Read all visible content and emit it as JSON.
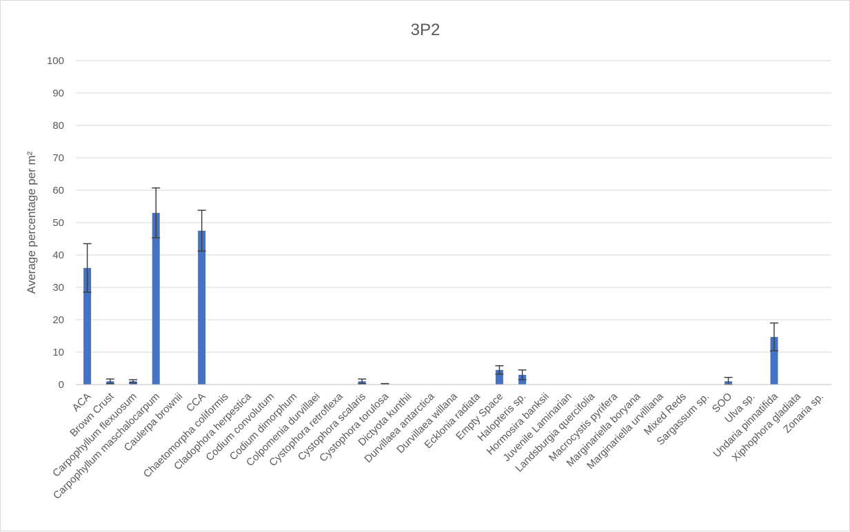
{
  "chart_data": {
    "type": "bar",
    "title": "3P2",
    "xlabel": "",
    "ylabel": "Average percentage per m²",
    "ylim": [
      0,
      100
    ],
    "yticks": [
      0,
      10,
      20,
      30,
      40,
      50,
      60,
      70,
      80,
      90,
      100
    ],
    "grid": true,
    "legend": "none",
    "bar_color": "#4472c4",
    "error_bar_color": "#404040",
    "categories": [
      "ACA",
      "Brown Crust",
      "Carpophyllum flexuosum",
      "Carpophyllum maschalocarpum",
      "Caulerpa brownii",
      "CCA",
      "Chaetomorpha coliformis",
      "Cladophora herpestica",
      "Codium convolutum",
      "Codium dimorphum",
      "Colpomenia durvillaei",
      "Cystophora retroflexa",
      "Cystophora scalaris",
      "Cystophora torulosa",
      "Dictyota kunthii",
      "Durvillaea antarctica",
      "Durvillaea willana",
      "Ecklonia radiata",
      "Empty Space",
      "Halopteris sp.",
      "Hormosira banksii",
      "Juvenile Laminarian",
      "Landsburgia quercifolia",
      "Macrocystis pyrifera",
      "Marginariella boryana",
      "Marginariella urvilliana",
      "Mixed Reds",
      "Sargassum sp.",
      "SOO",
      "Ulva sp.",
      "Undaria pinnatifida",
      "Xiphophora gladiata",
      "Zonaria sp."
    ],
    "values": [
      36,
      1,
      1,
      53,
      0,
      47.5,
      0,
      0,
      0,
      0,
      0,
      0,
      1,
      0.2,
      0,
      0,
      0,
      0,
      4.5,
      3,
      0,
      0,
      0,
      0,
      0,
      0,
      0,
      0,
      1,
      0,
      14.7,
      0,
      0
    ],
    "errors": [
      7.5,
      0.7,
      0.5,
      7.7,
      0,
      6.3,
      0,
      0,
      0,
      0,
      0,
      0,
      0.7,
      0.1,
      0,
      0,
      0,
      0,
      1.3,
      1.5,
      0,
      0,
      0,
      0,
      0,
      0,
      0,
      0,
      1.2,
      0,
      4.3,
      0,
      0
    ]
  }
}
